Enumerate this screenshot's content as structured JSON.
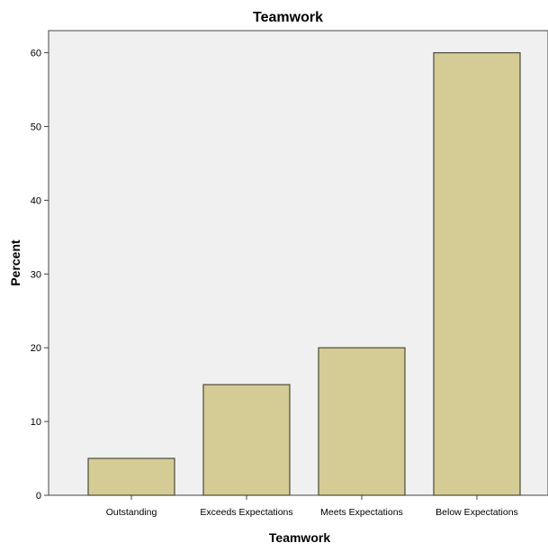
{
  "chart_data": {
    "type": "bar",
    "title": "Teamwork",
    "xlabel": "Teamwork",
    "ylabel": "Percent",
    "categories": [
      "Outstanding",
      "Exceeds Expectations",
      "Meets Expectations",
      "Below Expectations"
    ],
    "values": [
      5,
      15,
      20,
      60
    ],
    "ylim": [
      0,
      63
    ],
    "yticks": [
      0,
      10,
      20,
      30,
      40,
      50,
      60
    ],
    "grid": false,
    "legend": "none",
    "colors": {
      "bar_fill": "#d4cc94",
      "bar_stroke": "#4a4a3a",
      "plot_background": "#f0f0f0",
      "axis": "#444444",
      "text": "#000000"
    }
  }
}
